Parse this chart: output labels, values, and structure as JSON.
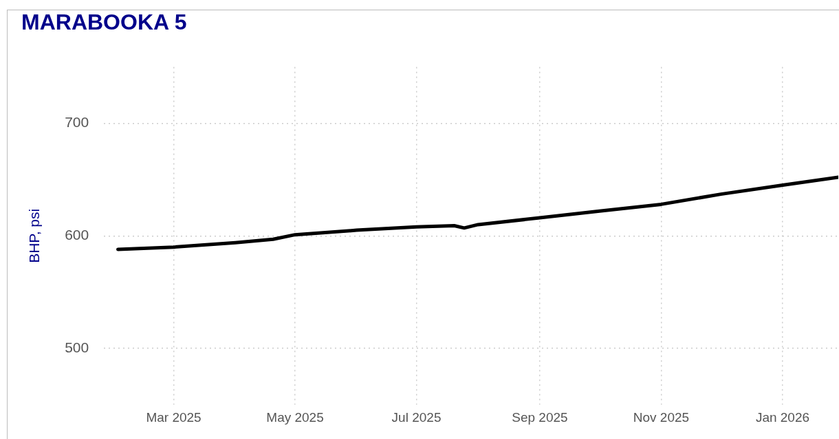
{
  "chart_data": {
    "type": "line",
    "title": "MARABOOKA 5",
    "ylabel": "BHP, psi",
    "x": [
      "2025-02-01",
      "2025-03-01",
      "2025-04-01",
      "2025-04-20",
      "2025-05-01",
      "2025-06-01",
      "2025-07-01",
      "2025-07-20",
      "2025-07-25",
      "2025-08-01",
      "2025-09-01",
      "2025-10-01",
      "2025-11-01",
      "2025-12-01",
      "2026-01-01",
      "2026-01-29"
    ],
    "series": [
      {
        "color": "#000000",
        "values": [
          588,
          590,
          594,
          597,
          601,
          605,
          608,
          609,
          607,
          610,
          616,
          622,
          628,
          637,
          645,
          652
        ]
      }
    ],
    "xlim": [
      "2025-01-25",
      "2026-01-29"
    ],
    "xticks": [
      {
        "value": "2025-03-01",
        "label": "Mar 2025"
      },
      {
        "value": "2025-05-01",
        "label": "May 2025"
      },
      {
        "value": "2025-07-01",
        "label": "Jul 2025"
      },
      {
        "value": "2025-09-01",
        "label": "Sep 2025"
      },
      {
        "value": "2025-11-01",
        "label": "Nov 2025"
      },
      {
        "value": "2026-01-01",
        "label": "Jan 2026"
      }
    ],
    "ylim": [
      450,
      750
    ],
    "yticks": [
      500,
      600,
      700
    ],
    "grid": true,
    "legend": false,
    "marker": "none",
    "line_style": "solid"
  }
}
